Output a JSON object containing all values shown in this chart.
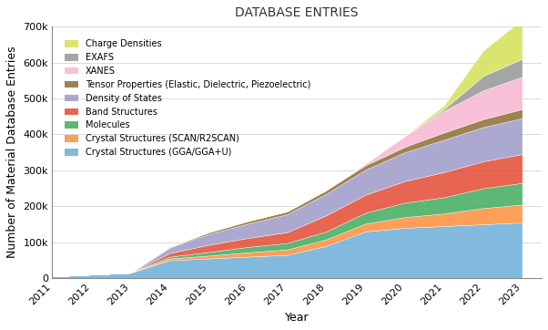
{
  "title": "DATABASE ENTRIES",
  "xlabel": "Year",
  "ylabel": "Number of Material Database Entries",
  "years": [
    2011,
    2012,
    2013,
    2014,
    2015,
    2016,
    2017,
    2018,
    2019,
    2020,
    2021,
    2022,
    2023
  ],
  "series": [
    {
      "label": "Crystal Structures (GGA/GGA+U)",
      "color": "#6baed6",
      "values": [
        5000,
        10000,
        15000,
        50000,
        55000,
        60000,
        65000,
        90000,
        130000,
        140000,
        145000,
        150000,
        155000
      ]
    },
    {
      "label": "Crystal Structures (SCAN/R2SCAN)",
      "color": "#fd8d3c",
      "values": [
        0,
        0,
        0,
        5000,
        8000,
        12000,
        15000,
        18000,
        22000,
        30000,
        35000,
        45000,
        50000
      ]
    },
    {
      "label": "Molecules",
      "color": "#41ab5d",
      "values": [
        0,
        0,
        0,
        5000,
        10000,
        15000,
        18000,
        22000,
        30000,
        40000,
        45000,
        55000,
        60000
      ]
    },
    {
      "label": "Band Structures",
      "color": "#e34a33",
      "values": [
        0,
        0,
        0,
        10000,
        20000,
        25000,
        30000,
        45000,
        50000,
        60000,
        70000,
        75000,
        80000
      ]
    },
    {
      "label": "Density of States",
      "color": "#9e9ac8",
      "values": [
        0,
        0,
        0,
        15000,
        30000,
        40000,
        50000,
        60000,
        70000,
        80000,
        90000,
        95000,
        100000
      ]
    },
    {
      "label": "Tensor Properties (Elastic, Dielectric, Piezoelectric)",
      "color": "#8c6d31",
      "values": [
        0,
        0,
        0,
        2000,
        5000,
        7000,
        8000,
        10000,
        12000,
        15000,
        20000,
        22000,
        25000
      ]
    },
    {
      "label": "XANES",
      "color": "#f7b6d2",
      "values": [
        0,
        0,
        0,
        0,
        0,
        0,
        0,
        0,
        5000,
        30000,
        60000,
        80000,
        90000
      ]
    },
    {
      "label": "EXAFS",
      "color": "#969696",
      "values": [
        0,
        0,
        0,
        0,
        0,
        0,
        0,
        0,
        0,
        0,
        5000,
        40000,
        50000
      ]
    },
    {
      "label": "Charge Densities",
      "color": "#d4e157",
      "values": [
        0,
        0,
        0,
        0,
        0,
        0,
        0,
        0,
        0,
        0,
        10000,
        70000,
        110000
      ]
    }
  ],
  "ylim": [
    0,
    700000
  ],
  "yticks": [
    0,
    100000,
    200000,
    300000,
    400000,
    500000,
    600000,
    700000
  ],
  "ytick_labels": [
    "0",
    "100k",
    "200k",
    "300k",
    "400k",
    "500k",
    "600k",
    "700k"
  ],
  "title_fontsize": 10,
  "label_fontsize": 9,
  "tick_fontsize": 8
}
